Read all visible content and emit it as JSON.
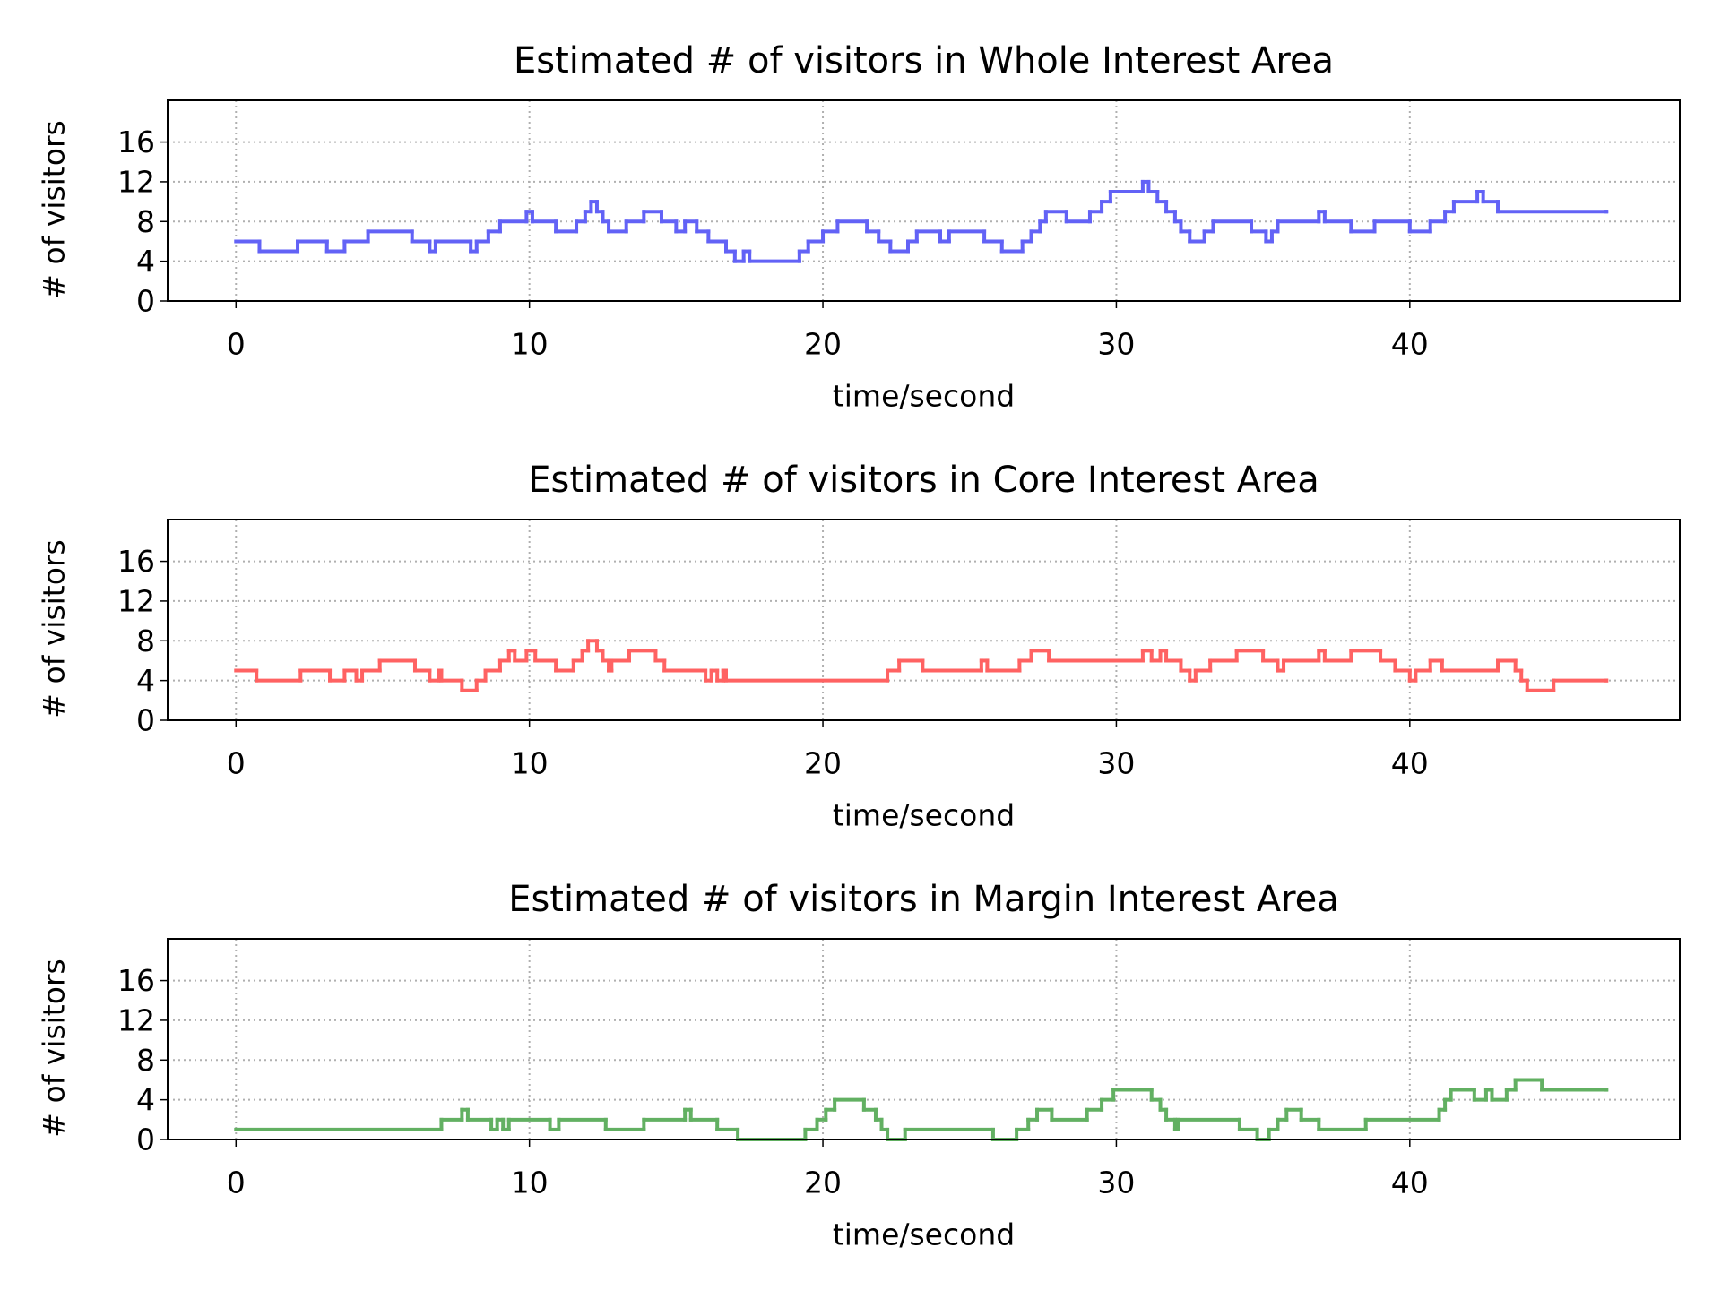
{
  "chart_data": [
    {
      "type": "line",
      "drawstyle": "steps-post",
      "title": "Estimated # of visitors in Whole Interest Area",
      "xlabel": "time/second",
      "ylabel": "# of visitors",
      "color": "#6262f6",
      "x": [
        0,
        0.8,
        2.1,
        3.1,
        3.7,
        4.5,
        6,
        6.6,
        6.8,
        8,
        8.2,
        8.6,
        9,
        9.9,
        10.1,
        10.9,
        11.6,
        11.9,
        12.1,
        12.3,
        12.5,
        12.7,
        13.3,
        13.9,
        14.5,
        15,
        15.3,
        15.7,
        16.1,
        16.7,
        17,
        17.3,
        17.5,
        19.2,
        19.5,
        20,
        20.5,
        21.5,
        21.9,
        22.3,
        22.9,
        23.2,
        24,
        24.3,
        25.5,
        26.1,
        26.8,
        27.1,
        27.4,
        27.6,
        28.3,
        29.1,
        29.5,
        29.8,
        30.9,
        31.1,
        31.4,
        31.7,
        32,
        32.2,
        32.5,
        33,
        33.3,
        34.6,
        35.1,
        35.3,
        35.5,
        36.9,
        37.1,
        38,
        38.8,
        40,
        40.7,
        41.2,
        41.5,
        42.3,
        42.5,
        43,
        46.7
      ],
      "values": [
        6,
        5,
        6,
        5,
        6,
        7,
        6,
        5,
        6,
        5,
        6,
        7,
        8,
        9,
        8,
        7,
        8,
        9,
        10,
        9,
        8,
        7,
        8,
        9,
        8,
        7,
        8,
        7,
        6,
        5,
        4,
        5,
        4,
        5,
        6,
        7,
        8,
        7,
        6,
        5,
        6,
        7,
        6,
        7,
        6,
        5,
        6,
        7,
        8,
        9,
        8,
        9,
        10,
        11,
        12,
        11,
        10,
        9,
        8,
        7,
        6,
        7,
        8,
        7,
        6,
        7,
        8,
        9,
        8,
        7,
        8,
        7,
        8,
        9,
        10,
        11,
        10,
        9,
        9
      ],
      "xlim": [
        -2.33,
        49.2
      ],
      "ylim": [
        0,
        20.2
      ],
      "xticks": [
        0,
        10,
        20,
        30,
        40
      ],
      "yticks": [
        0,
        4,
        8,
        12,
        16
      ],
      "grid": true
    },
    {
      "type": "line",
      "drawstyle": "steps-post",
      "title": "Estimated # of visitors in Core Interest Area",
      "xlabel": "time/second",
      "ylabel": "# of visitors",
      "color": "#ff6262",
      "x": [
        0,
        0.7,
        2.2,
        3.2,
        3.7,
        4.1,
        4.3,
        4.9,
        6.1,
        6.6,
        6.9,
        7,
        7.7,
        8.2,
        8.5,
        9,
        9.3,
        9.5,
        9.9,
        10.2,
        10.9,
        11.5,
        11.8,
        12,
        12.3,
        12.5,
        12.7,
        12.8,
        13.4,
        14.3,
        14.6,
        16,
        16.2,
        16.4,
        16.6,
        16.7,
        22.2,
        22.6,
        23.4,
        25.4,
        25.6,
        26.7,
        27.1,
        27.7,
        30.9,
        31.2,
        31.5,
        31.7,
        32.2,
        32.5,
        32.7,
        33.2,
        34.1,
        35,
        35.5,
        35.7,
        36.9,
        37.1,
        38,
        39,
        39.5,
        40,
        40.2,
        40.7,
        41.1,
        43,
        43.6,
        43.8,
        44,
        44.9,
        46.7
      ],
      "values": [
        5,
        4,
        5,
        4,
        5,
        4,
        5,
        6,
        5,
        4,
        5,
        4,
        3,
        4,
        5,
        6,
        7,
        6,
        7,
        6,
        5,
        6,
        7,
        8,
        7,
        6,
        5,
        6,
        7,
        6,
        5,
        4,
        5,
        4,
        5,
        4,
        5,
        6,
        5,
        6,
        5,
        6,
        7,
        6,
        7,
        6,
        7,
        6,
        5,
        4,
        5,
        6,
        7,
        6,
        5,
        6,
        7,
        6,
        7,
        6,
        5,
        4,
        5,
        6,
        5,
        6,
        5,
        4,
        3,
        4,
        4
      ],
      "xlim": [
        -2.33,
        49.2
      ],
      "ylim": [
        0,
        20.2
      ],
      "xticks": [
        0,
        10,
        20,
        30,
        40
      ],
      "yticks": [
        0,
        4,
        8,
        12,
        16
      ],
      "grid": true
    },
    {
      "type": "line",
      "drawstyle": "steps-post",
      "title": "Estimated # of visitors in Margin Interest Area",
      "xlabel": "time/second",
      "ylabel": "# of visitors",
      "color": "#62b062",
      "x": [
        0,
        7,
        7.7,
        7.9,
        8.7,
        8.9,
        9.1,
        9.3,
        10.7,
        11,
        12.6,
        13.9,
        15.3,
        15.5,
        16.4,
        17.1,
        19.4,
        19.8,
        20.1,
        20.4,
        21.4,
        21.8,
        22,
        22.2,
        22.8,
        25.8,
        26.6,
        27,
        27.3,
        27.8,
        29,
        29.5,
        29.9,
        31.2,
        31.5,
        31.7,
        32,
        32.1,
        34.2,
        34.8,
        35.2,
        35.5,
        35.8,
        36.3,
        36.9,
        38.5,
        41,
        41.2,
        41.4,
        42.2,
        42.6,
        42.8,
        43.3,
        43.6,
        44.5,
        46.7
      ],
      "values": [
        1,
        2,
        3,
        2,
        1,
        2,
        1,
        2,
        1,
        2,
        1,
        2,
        3,
        2,
        1,
        0,
        1,
        2,
        3,
        4,
        3,
        2,
        1,
        0,
        1,
        0,
        1,
        2,
        3,
        2,
        3,
        4,
        5,
        4,
        3,
        2,
        1,
        2,
        1,
        0,
        1,
        2,
        3,
        2,
        1,
        2,
        3,
        4,
        5,
        4,
        5,
        4,
        5,
        6,
        5,
        5
      ],
      "xlim": [
        -2.33,
        49.2
      ],
      "ylim": [
        0,
        20.2
      ],
      "xticks": [
        0,
        10,
        20,
        30,
        40
      ],
      "yticks": [
        0,
        4,
        8,
        12,
        16
      ],
      "grid": true
    }
  ]
}
